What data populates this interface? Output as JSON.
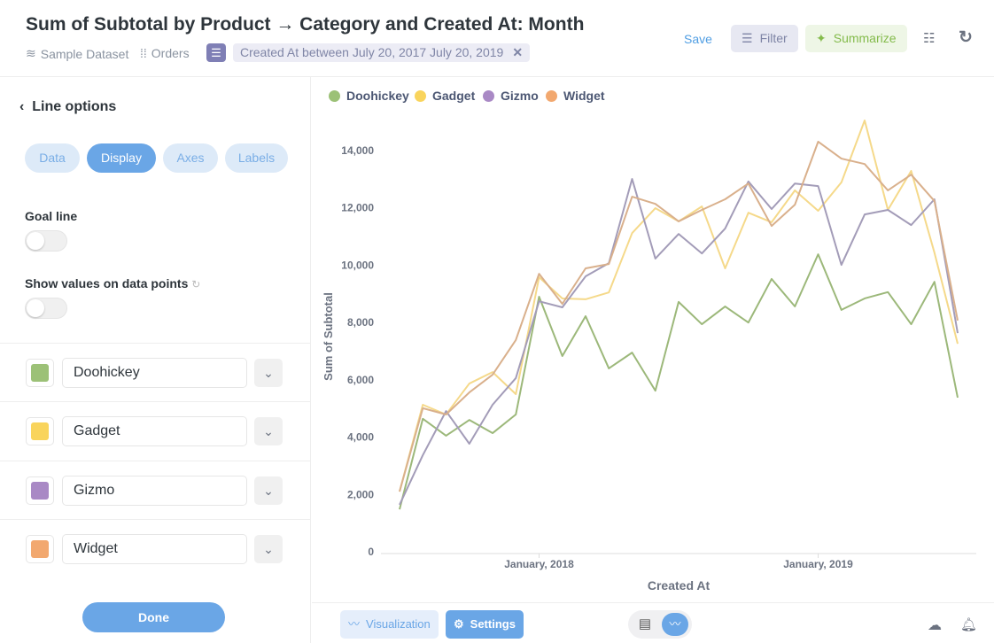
{
  "header": {
    "title": "Sum of Subtotal by Product → Category and Created At: Month",
    "database": "Sample Dataset",
    "table": "Orders",
    "filter": "Created At between July 20, 2017 July 20, 2019",
    "save": "Save",
    "filter_btn": "Filter",
    "summarize_btn": "Summarize"
  },
  "sidebar": {
    "back_label": "Line options",
    "tabs": [
      "Data",
      "Display",
      "Axes",
      "Labels"
    ],
    "active_tab": "Display",
    "goal_line": "Goal line",
    "goal_line_on": false,
    "show_values": "Show values on data points",
    "show_values_on": false,
    "series": [
      {
        "name": "Doohickey",
        "color": "#9cc177"
      },
      {
        "name": "Gadget",
        "color": "#f9d45c"
      },
      {
        "name": "Gizmo",
        "color": "#a989c5"
      },
      {
        "name": "Widget",
        "color": "#f2a86f"
      }
    ],
    "done": "Done"
  },
  "footer": {
    "visualization": "Visualization",
    "settings": "Settings"
  },
  "chart_data": {
    "type": "line",
    "xlabel": "Created At",
    "ylabel": "Sum of Subtotal",
    "ylim": [
      0,
      14000
    ],
    "yticks": [
      "0",
      "2,000",
      "4,000",
      "6,000",
      "8,000",
      "10,000",
      "12,000",
      "14,000"
    ],
    "xticks": [
      "January, 2018",
      "January, 2019"
    ],
    "legend": "top-left",
    "x": [
      "2017-07",
      "2017-08",
      "2017-09",
      "2017-10",
      "2017-11",
      "2017-12",
      "2018-01",
      "2018-02",
      "2018-03",
      "2018-04",
      "2018-05",
      "2018-06",
      "2018-07",
      "2018-08",
      "2018-09",
      "2018-10",
      "2018-11",
      "2018-12",
      "2019-01",
      "2019-02",
      "2019-03",
      "2019-04",
      "2019-05",
      "2019-06",
      "2019-07"
    ],
    "series": [
      {
        "name": "Doohickey",
        "color": "#9cb87a",
        "values": [
          1480,
          4640,
          4050,
          4600,
          4140,
          4790,
          8900,
          6830,
          8220,
          6400,
          6950,
          5620,
          8720,
          7940,
          8560,
          8000,
          9520,
          8560,
          10380,
          8440,
          8840,
          9060,
          7940,
          9420,
          5380
        ]
      },
      {
        "name": "Gadget",
        "color": "#f5d98a",
        "values": [
          2100,
          5130,
          4790,
          5870,
          6270,
          5500,
          9580,
          8840,
          8810,
          9050,
          11120,
          11990,
          11530,
          12050,
          9890,
          11830,
          11500,
          12610,
          11900,
          12890,
          15050,
          11930,
          13290,
          10440,
          7260
        ]
      },
      {
        "name": "Gizmo",
        "color": "#a39cb8",
        "values": [
          1640,
          3370,
          4910,
          3770,
          5130,
          6060,
          8740,
          8530,
          9610,
          10070,
          13010,
          10230,
          11090,
          10410,
          11280,
          12920,
          11960,
          12850,
          12760,
          10010,
          11770,
          11930,
          11400,
          12300,
          7630
        ]
      },
      {
        "name": "Widget",
        "color": "#d9b08c",
        "values": [
          2100,
          5010,
          4790,
          5560,
          6180,
          7390,
          9700,
          8650,
          9890,
          10040,
          12390,
          12140,
          11530,
          11930,
          12300,
          12850,
          11370,
          12110,
          14310,
          13720,
          13530,
          12610,
          13160,
          12240,
          8070
        ]
      }
    ]
  }
}
